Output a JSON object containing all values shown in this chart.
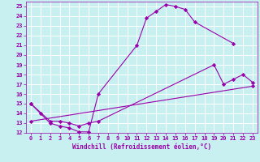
{
  "xlabel": "Windchill (Refroidissement éolien,°C)",
  "bg_color": "#c8f0f0",
  "grid_color": "#ffffff",
  "line_color": "#9900aa",
  "xlim": [
    -0.5,
    23.5
  ],
  "ylim": [
    12,
    25.5
  ],
  "xticks": [
    0,
    1,
    2,
    3,
    4,
    5,
    6,
    7,
    8,
    9,
    10,
    11,
    12,
    13,
    14,
    15,
    16,
    17,
    18,
    19,
    20,
    21,
    22,
    23
  ],
  "yticks": [
    12,
    13,
    14,
    15,
    16,
    17,
    18,
    19,
    20,
    21,
    22,
    23,
    24,
    25
  ],
  "curve1_x": [
    0,
    1,
    2,
    3,
    4,
    5,
    6,
    7,
    11,
    12,
    13,
    14,
    15,
    16,
    17,
    21
  ],
  "curve1_y": [
    15.0,
    14.0,
    13.0,
    12.7,
    12.5,
    12.1,
    12.1,
    16.0,
    21.0,
    23.8,
    24.5,
    25.2,
    25.0,
    24.7,
    23.4,
    21.2
  ],
  "curve2_x": [
    0,
    2,
    3,
    4,
    5,
    6,
    7,
    19,
    20,
    21,
    22,
    23
  ],
  "curve2_y": [
    15.0,
    13.2,
    13.2,
    13.0,
    12.7,
    13.0,
    13.2,
    19.0,
    17.0,
    17.5,
    18.0,
    17.2
  ],
  "curve3_x": [
    0,
    23
  ],
  "curve3_y": [
    13.2,
    16.8
  ],
  "marker": "D",
  "marker_size": 2.2,
  "linewidth": 0.8,
  "tick_labelsize": 5,
  "xlabel_fontsize": 5.5
}
